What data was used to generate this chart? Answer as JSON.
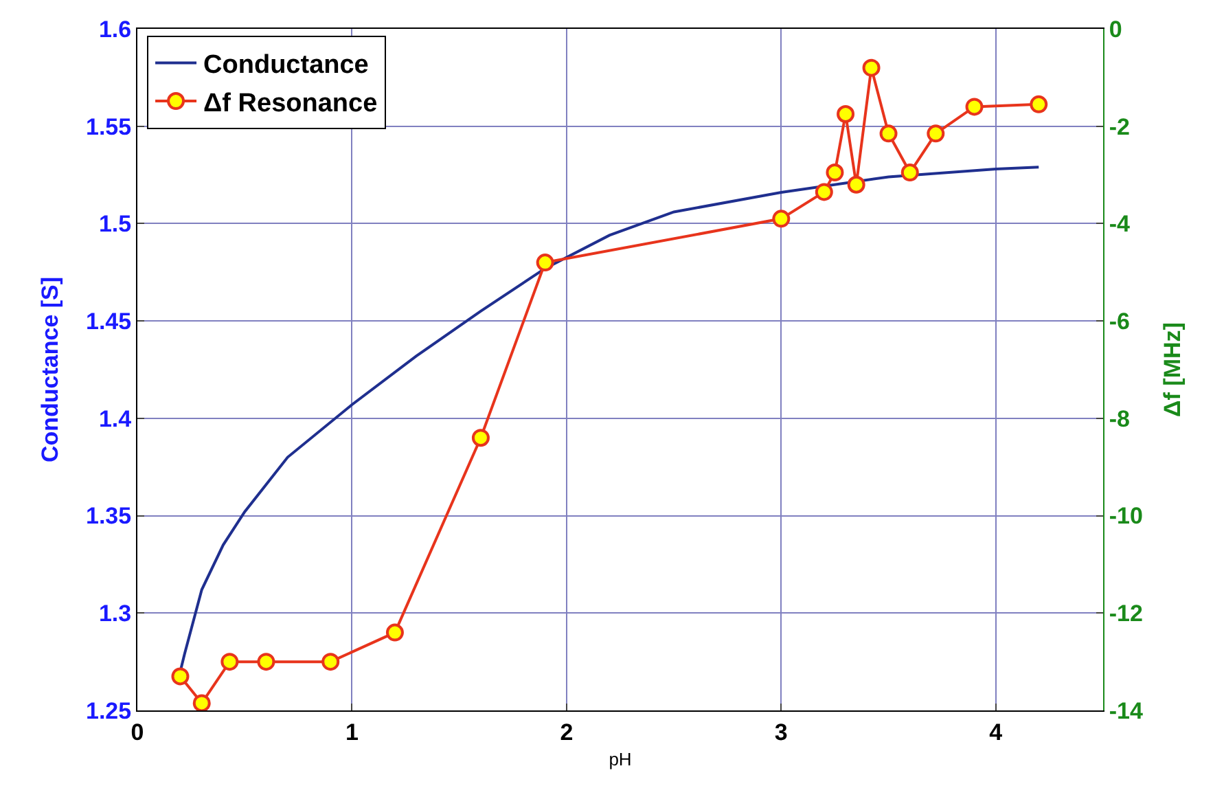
{
  "chart_data": {
    "type": "line",
    "xlabel": "pH",
    "ylabel": "Conductance [S]",
    "y2label": "Δf [MHz]",
    "xlim": [
      0,
      4.5
    ],
    "xticks": [
      0,
      1,
      2,
      3,
      4
    ],
    "ylim": [
      1.25,
      1.6
    ],
    "yticks": [
      1.25,
      1.3,
      1.35,
      1.4,
      1.45,
      1.5,
      1.55,
      1.6
    ],
    "y2lim": [
      -14,
      0
    ],
    "y2ticks": [
      -14,
      -12,
      -10,
      -8,
      -6,
      -4,
      -2,
      0
    ],
    "grid": true,
    "legend": "top left",
    "series": [
      {
        "name": "Conductance",
        "color": "#1f2f8f",
        "marker": "none",
        "x": [
          0.2,
          0.22,
          0.3,
          0.4,
          0.5,
          0.7,
          1.0,
          1.3,
          1.6,
          1.9,
          2.2,
          2.5,
          3.0,
          3.5,
          4.0,
          4.2
        ],
        "values": [
          1.27,
          1.279,
          1.312,
          1.335,
          1.352,
          1.38,
          1.407,
          1.432,
          1.455,
          1.477,
          1.494,
          1.506,
          1.516,
          1.524,
          1.528,
          1.529
        ]
      },
      {
        "name": "Δf Resonance",
        "color": "#e8341c",
        "marker": "circle",
        "axis": "y2",
        "x": [
          0.2,
          0.3,
          0.43,
          0.6,
          0.9,
          1.2,
          1.6,
          1.9,
          3.0,
          3.2,
          3.25,
          3.3,
          3.35,
          3.42,
          3.5,
          3.6,
          3.72,
          3.9,
          4.2
        ],
        "values": [
          -13.3,
          -13.85,
          -13.0,
          -13.0,
          -13.0,
          -12.4,
          -8.4,
          -4.8,
          -3.9,
          -3.35,
          -2.95,
          -1.75,
          -3.2,
          -0.8,
          -2.15,
          -2.95,
          -2.15,
          -1.6,
          -1.55
        ]
      }
    ]
  }
}
